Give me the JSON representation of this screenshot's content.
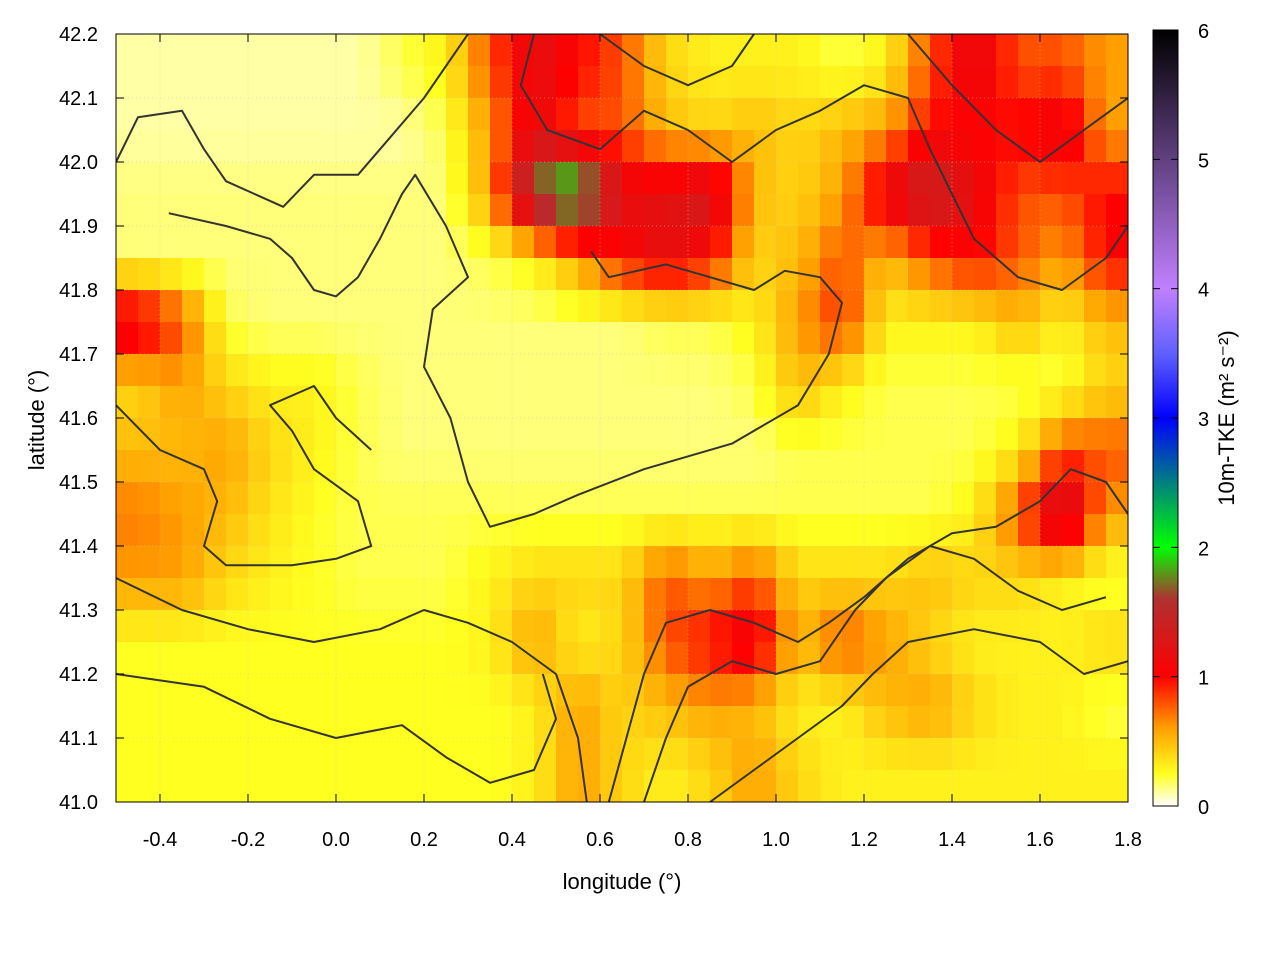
{
  "chart_data": {
    "type": "heatmap",
    "title": "",
    "xlabel": "longitude (°)",
    "ylabel": "latitude (°)",
    "colorbar_label": "10m-TKE (m² s⁻²)",
    "xlim": [
      -0.5,
      1.8
    ],
    "ylim": [
      41.0,
      42.2
    ],
    "clim": [
      0,
      6
    ],
    "grid": true,
    "x_ticks": [
      "-0.4",
      "-0.2",
      "0.0",
      "0.2",
      "0.4",
      "0.6",
      "0.8",
      "1.0",
      "1.2",
      "1.4",
      "1.6",
      "1.8"
    ],
    "y_ticks": [
      "41.0",
      "41.1",
      "41.2",
      "41.3",
      "41.4",
      "41.5",
      "41.6",
      "41.7",
      "41.8",
      "41.9",
      "42.0",
      "42.1",
      "42.2"
    ],
    "colorbar_ticks": [
      "0",
      "1",
      "2",
      "3",
      "4",
      "5",
      "6"
    ],
    "colormap": [
      {
        "v": 0,
        "c": "#ffffff"
      },
      {
        "v": 0.25,
        "c": "#ffff20"
      },
      {
        "v": 0.6,
        "c": "#ffa000"
      },
      {
        "v": 1.0,
        "c": "#ff0000"
      },
      {
        "v": 1.6,
        "c": "#b03030"
      },
      {
        "v": 2.0,
        "c": "#00ff00"
      },
      {
        "v": 2.5,
        "c": "#008080"
      },
      {
        "v": 3.0,
        "c": "#0000ff"
      },
      {
        "v": 3.5,
        "c": "#6060ff"
      },
      {
        "v": 4.0,
        "c": "#c080ff"
      },
      {
        "v": 5.0,
        "c": "#604080"
      },
      {
        "v": 6.0,
        "c": "#000000"
      }
    ],
    "grid_lon": [
      -0.45,
      -0.35,
      -0.25,
      -0.15,
      -0.05,
      0.05,
      0.15,
      0.25,
      0.35,
      0.45,
      0.55,
      0.65,
      0.75,
      0.85,
      0.95,
      1.05,
      1.15,
      1.25,
      1.35,
      1.45,
      1.55,
      1.65,
      1.75
    ],
    "grid_lat": [
      42.15,
      42.05,
      41.95,
      41.85,
      41.75,
      41.65,
      41.55,
      41.45,
      41.35,
      41.25,
      41.15,
      41.05
    ],
    "values": [
      [
        0.1,
        0.1,
        0.1,
        0.1,
        0.1,
        0.1,
        0.2,
        0.3,
        0.8,
        1.2,
        1.0,
        0.8,
        0.4,
        0.3,
        0.3,
        0.3,
        0.2,
        0.3,
        0.8,
        1.2,
        0.8,
        0.8,
        0.6
      ],
      [
        0.1,
        0.1,
        0.1,
        0.1,
        0.1,
        0.1,
        0.1,
        0.2,
        0.6,
        1.2,
        0.8,
        0.8,
        0.5,
        0.4,
        0.5,
        0.4,
        0.5,
        0.6,
        1.0,
        1.0,
        1.0,
        1.2,
        0.6
      ],
      [
        0.15,
        0.15,
        0.15,
        0.15,
        0.15,
        0.15,
        0.15,
        0.15,
        0.6,
        1.8,
        2.2,
        1.2,
        1.2,
        1.4,
        0.5,
        0.4,
        0.6,
        1.2,
        1.5,
        1.2,
        0.8,
        0.8,
        1.0
      ],
      [
        0.15,
        0.15,
        0.15,
        0.15,
        0.15,
        0.15,
        0.15,
        0.15,
        0.2,
        0.3,
        0.6,
        1.0,
        1.2,
        1.0,
        0.4,
        0.5,
        0.8,
        0.5,
        0.8,
        1.0,
        0.8,
        0.6,
        1.0
      ],
      [
        1.2,
        0.8,
        0.2,
        0.15,
        0.15,
        0.15,
        0.15,
        0.15,
        0.15,
        0.15,
        0.15,
        0.15,
        0.2,
        0.2,
        0.3,
        0.6,
        0.9,
        0.3,
        0.3,
        0.3,
        0.5,
        0.3,
        0.5
      ],
      [
        0.4,
        0.6,
        0.4,
        0.3,
        0.3,
        0.2,
        0.15,
        0.15,
        0.15,
        0.15,
        0.15,
        0.15,
        0.15,
        0.15,
        0.2,
        0.5,
        0.3,
        0.2,
        0.2,
        0.2,
        0.2,
        0.2,
        0.4
      ],
      [
        0.5,
        0.5,
        0.6,
        0.4,
        0.3,
        0.2,
        0.15,
        0.15,
        0.15,
        0.15,
        0.15,
        0.15,
        0.15,
        0.15,
        0.15,
        0.2,
        0.2,
        0.2,
        0.2,
        0.2,
        0.3,
        0.8,
        0.8
      ],
      [
        0.7,
        0.6,
        0.5,
        0.35,
        0.25,
        0.2,
        0.2,
        0.2,
        0.2,
        0.2,
        0.2,
        0.2,
        0.2,
        0.2,
        0.2,
        0.2,
        0.2,
        0.2,
        0.2,
        0.3,
        0.8,
        1.5,
        0.6
      ],
      [
        0.6,
        0.6,
        0.4,
        0.3,
        0.25,
        0.2,
        0.2,
        0.2,
        0.3,
        0.4,
        0.4,
        0.4,
        0.8,
        0.6,
        0.8,
        0.4,
        0.4,
        0.4,
        0.5,
        0.4,
        0.4,
        0.3,
        0.2
      ],
      [
        0.25,
        0.25,
        0.25,
        0.25,
        0.25,
        0.25,
        0.25,
        0.25,
        0.3,
        0.6,
        0.3,
        0.4,
        0.8,
        1.0,
        1.2,
        0.5,
        0.8,
        0.6,
        0.4,
        0.3,
        0.3,
        0.3,
        0.4
      ],
      [
        0.25,
        0.25,
        0.25,
        0.25,
        0.25,
        0.25,
        0.25,
        0.25,
        0.25,
        0.3,
        0.6,
        0.4,
        0.5,
        0.6,
        0.5,
        0.3,
        0.3,
        0.5,
        0.6,
        0.4,
        0.3,
        0.3,
        0.2
      ],
      [
        0.25,
        0.25,
        0.25,
        0.25,
        0.25,
        0.25,
        0.25,
        0.25,
        0.25,
        0.3,
        0.6,
        0.4,
        0.3,
        0.4,
        0.6,
        0.4,
        0.3,
        0.3,
        0.3,
        0.3,
        0.3,
        0.3,
        0.3
      ]
    ],
    "contours": [
      [
        [
          -0.5,
          42.0
        ],
        [
          -0.45,
          42.07
        ],
        [
          -0.35,
          42.08
        ],
        [
          -0.3,
          42.02
        ],
        [
          -0.25,
          41.97
        ],
        [
          -0.12,
          41.93
        ],
        [
          -0.05,
          41.98
        ],
        [
          0.05,
          41.98
        ],
        [
          0.1,
          42.02
        ],
        [
          0.2,
          42.1
        ],
        [
          0.3,
          42.2
        ]
      ],
      [
        [
          -0.38,
          41.92
        ],
        [
          -0.25,
          41.9
        ],
        [
          -0.15,
          41.88
        ],
        [
          -0.1,
          41.85
        ],
        [
          -0.05,
          41.8
        ],
        [
          0.0,
          41.79
        ],
        [
          0.05,
          41.82
        ],
        [
          0.1,
          41.88
        ],
        [
          0.15,
          41.95
        ],
        [
          0.18,
          41.98
        ],
        [
          0.25,
          41.9
        ],
        [
          0.3,
          41.82
        ],
        [
          0.22,
          41.77
        ],
        [
          0.2,
          41.68
        ],
        [
          0.26,
          41.6
        ],
        [
          0.3,
          41.5
        ],
        [
          0.35,
          41.43
        ],
        [
          0.45,
          41.45
        ],
        [
          0.55,
          41.48
        ],
        [
          0.7,
          41.52
        ],
        [
          0.9,
          41.56
        ],
        [
          1.05,
          41.62
        ],
        [
          1.12,
          41.7
        ],
        [
          1.15,
          41.78
        ],
        [
          1.1,
          41.82
        ],
        [
          1.02,
          41.83
        ],
        [
          0.95,
          41.8
        ],
        [
          0.85,
          41.82
        ],
        [
          0.75,
          41.84
        ],
        [
          0.62,
          41.82
        ],
        [
          0.58,
          41.86
        ]
      ],
      [
        [
          -0.5,
          41.62
        ],
        [
          -0.4,
          41.55
        ],
        [
          -0.3,
          41.52
        ],
        [
          -0.27,
          41.47
        ],
        [
          -0.3,
          41.4
        ],
        [
          -0.25,
          41.37
        ],
        [
          -0.1,
          41.37
        ],
        [
          0.0,
          41.38
        ],
        [
          0.08,
          41.4
        ],
        [
          0.05,
          41.47
        ],
        [
          -0.05,
          41.52
        ],
        [
          -0.1,
          41.58
        ],
        [
          -0.15,
          41.62
        ],
        [
          -0.05,
          41.65
        ],
        [
          0.0,
          41.6
        ],
        [
          0.08,
          41.55
        ]
      ],
      [
        [
          -0.5,
          41.35
        ],
        [
          -0.35,
          41.3
        ],
        [
          -0.2,
          41.27
        ],
        [
          -0.05,
          41.25
        ],
        [
          0.1,
          41.27
        ],
        [
          0.2,
          41.3
        ],
        [
          0.3,
          41.28
        ],
        [
          0.4,
          41.25
        ],
        [
          0.5,
          41.2
        ],
        [
          0.55,
          41.1
        ],
        [
          0.57,
          41.0
        ]
      ],
      [
        [
          -0.5,
          41.2
        ],
        [
          -0.3,
          41.18
        ],
        [
          -0.15,
          41.13
        ],
        [
          0.0,
          41.1
        ],
        [
          0.15,
          41.12
        ],
        [
          0.25,
          41.07
        ],
        [
          0.35,
          41.03
        ],
        [
          0.45,
          41.05
        ],
        [
          0.5,
          41.13
        ],
        [
          0.47,
          41.2
        ]
      ],
      [
        [
          0.62,
          41.0
        ],
        [
          0.66,
          41.1
        ],
        [
          0.7,
          41.2
        ],
        [
          0.75,
          41.28
        ],
        [
          0.85,
          41.3
        ],
        [
          0.95,
          41.28
        ],
        [
          1.05,
          41.25
        ],
        [
          1.12,
          41.28
        ],
        [
          1.2,
          41.32
        ],
        [
          1.3,
          41.38
        ],
        [
          1.4,
          41.42
        ],
        [
          1.5,
          41.43
        ],
        [
          1.6,
          41.47
        ],
        [
          1.67,
          41.52
        ],
        [
          1.75,
          41.5
        ],
        [
          1.8,
          41.45
        ]
      ],
      [
        [
          0.7,
          41.0
        ],
        [
          0.75,
          41.1
        ],
        [
          0.8,
          41.18
        ],
        [
          0.9,
          41.22
        ],
        [
          1.0,
          41.2
        ],
        [
          1.1,
          41.22
        ],
        [
          1.18,
          41.3
        ],
        [
          1.25,
          41.35
        ],
        [
          1.35,
          41.4
        ],
        [
          1.45,
          41.38
        ],
        [
          1.55,
          41.33
        ],
        [
          1.65,
          41.3
        ],
        [
          1.75,
          41.32
        ]
      ],
      [
        [
          0.85,
          41.0
        ],
        [
          0.95,
          41.05
        ],
        [
          1.05,
          41.1
        ],
        [
          1.15,
          41.15
        ],
        [
          1.22,
          41.2
        ],
        [
          1.3,
          41.25
        ],
        [
          1.45,
          41.27
        ],
        [
          1.6,
          41.25
        ],
        [
          1.7,
          41.2
        ],
        [
          1.8,
          41.22
        ]
      ],
      [
        [
          0.45,
          42.2
        ],
        [
          0.42,
          42.12
        ],
        [
          0.48,
          42.05
        ],
        [
          0.6,
          42.02
        ],
        [
          0.7,
          42.08
        ],
        [
          0.8,
          42.05
        ],
        [
          0.9,
          42.0
        ],
        [
          1.0,
          42.05
        ],
        [
          1.1,
          42.08
        ],
        [
          1.2,
          42.12
        ],
        [
          1.3,
          42.1
        ],
        [
          1.35,
          42.02
        ],
        [
          1.4,
          41.95
        ],
        [
          1.45,
          41.88
        ],
        [
          1.55,
          41.82
        ],
        [
          1.65,
          41.8
        ],
        [
          1.75,
          41.85
        ],
        [
          1.8,
          41.9
        ]
      ],
      [
        [
          0.6,
          42.2
        ],
        [
          0.7,
          42.15
        ],
        [
          0.8,
          42.12
        ],
        [
          0.9,
          42.15
        ],
        [
          0.95,
          42.2
        ]
      ],
      [
        [
          1.3,
          42.2
        ],
        [
          1.4,
          42.12
        ],
        [
          1.5,
          42.05
        ],
        [
          1.6,
          42.0
        ],
        [
          1.7,
          42.05
        ],
        [
          1.8,
          42.1
        ]
      ]
    ]
  }
}
